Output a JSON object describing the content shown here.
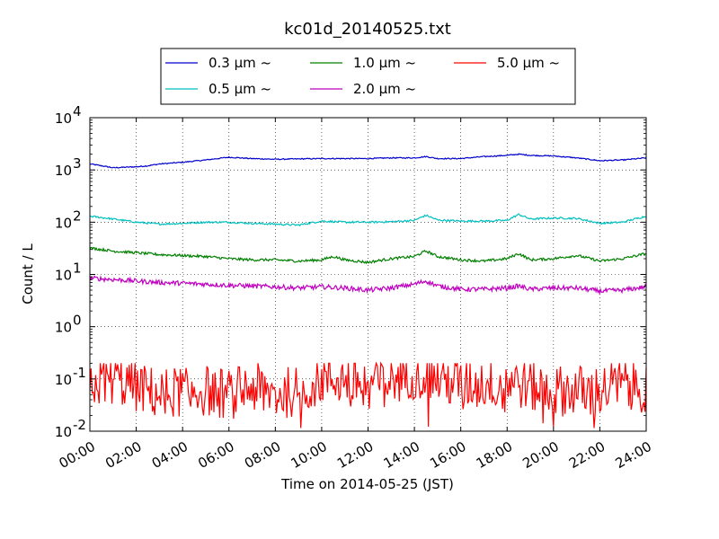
{
  "chart_data": {
    "type": "line",
    "title": "kc01d_20140525.txt",
    "xlabel": "Time on 2014-05-25 (JST)",
    "ylabel": "Count / L",
    "y_scale": "log",
    "ylim": [
      0.01,
      10000
    ],
    "xlim": [
      "00:00",
      "24:00"
    ],
    "x_ticks": [
      "00:00",
      "02:00",
      "04:00",
      "06:00",
      "08:00",
      "10:00",
      "12:00",
      "14:00",
      "16:00",
      "18:00",
      "20:00",
      "22:00",
      "24:00"
    ],
    "y_ticks": [
      {
        "base": "10",
        "exp": "-2"
      },
      {
        "base": "10",
        "exp": "-1"
      },
      {
        "base": "10",
        "exp": "0"
      },
      {
        "base": "10",
        "exp": "1"
      },
      {
        "base": "10",
        "exp": "2"
      },
      {
        "base": "10",
        "exp": "3"
      },
      {
        "base": "10",
        "exp": "4"
      }
    ],
    "grid": true,
    "legend_position": "top",
    "series": [
      {
        "name": "0.3 μm ~",
        "color": "#0000cc",
        "x": [
          "00:00",
          "01:00",
          "02:00",
          "02:30",
          "03:00",
          "04:00",
          "05:00",
          "06:00",
          "07:00",
          "08:00",
          "10:00",
          "12:00",
          "13:00",
          "14:00",
          "14:30",
          "15:00",
          "16:00",
          "17:00",
          "18:00",
          "18:30",
          "19:00",
          "20:00",
          "21:00",
          "22:00",
          "23:00",
          "24:00"
        ],
        "values": [
          1300,
          1100,
          1150,
          1200,
          1300,
          1400,
          1550,
          1750,
          1650,
          1600,
          1650,
          1650,
          1700,
          1700,
          1800,
          1650,
          1650,
          1800,
          1900,
          2000,
          1900,
          1850,
          1700,
          1500,
          1550,
          1700
        ]
      },
      {
        "name": "0.5 μm ~",
        "color": "#00bfbf",
        "x": [
          "00:00",
          "01:00",
          "02:00",
          "03:00",
          "04:00",
          "05:00",
          "06:00",
          "07:00",
          "08:00",
          "09:00",
          "10:00",
          "11:00",
          "12:00",
          "13:00",
          "14:00",
          "14:30",
          "15:00",
          "16:00",
          "17:00",
          "18:00",
          "18:30",
          "19:00",
          "20:00",
          "21:00",
          "22:00",
          "23:00",
          "24:00"
        ],
        "values": [
          130,
          115,
          100,
          92,
          95,
          100,
          100,
          95,
          92,
          88,
          105,
          100,
          100,
          102,
          108,
          135,
          110,
          105,
          105,
          108,
          140,
          115,
          120,
          118,
          95,
          100,
          130
        ]
      },
      {
        "name": "1.0 μm ~",
        "color": "#008000",
        "x": [
          "00:00",
          "01:00",
          "02:00",
          "03:00",
          "04:00",
          "05:00",
          "06:00",
          "07:00",
          "08:00",
          "09:00",
          "10:00",
          "10:30",
          "11:00",
          "12:00",
          "13:00",
          "14:00",
          "14:30",
          "15:00",
          "16:00",
          "17:00",
          "18:00",
          "18:30",
          "19:00",
          "20:00",
          "21:00",
          "22:00",
          "23:00",
          "24:00"
        ],
        "values": [
          32,
          28,
          26,
          24,
          23,
          22,
          20,
          19,
          19,
          18,
          19,
          22,
          19,
          17,
          20,
          22,
          28,
          22,
          19,
          18,
          20,
          25,
          19,
          20,
          23,
          18,
          20,
          25
        ]
      },
      {
        "name": "2.0 μm ~",
        "color": "#bf00bf",
        "x": [
          "00:00",
          "01:00",
          "02:00",
          "03:00",
          "04:00",
          "05:00",
          "06:00",
          "07:00",
          "08:00",
          "09:00",
          "10:00",
          "11:00",
          "12:00",
          "13:00",
          "14:00",
          "14:30",
          "15:00",
          "16:00",
          "17:00",
          "18:00",
          "18:30",
          "19:00",
          "20:00",
          "21:00",
          "22:00",
          "23:00",
          "24:00"
        ],
        "values": [
          8.5,
          8.0,
          7.5,
          7.0,
          6.8,
          6.5,
          6.2,
          6.0,
          5.8,
          5.5,
          5.8,
          5.5,
          5.0,
          5.5,
          6.5,
          7.5,
          6.0,
          5.2,
          5.2,
          5.5,
          6.0,
          5.2,
          5.5,
          5.5,
          4.8,
          5.0,
          5.8
        ]
      },
      {
        "name": "5.0 μm ~",
        "color": "#ff0000",
        "x": [
          "00:00",
          "01:00",
          "02:00",
          "03:00",
          "04:00",
          "05:00",
          "06:00",
          "07:00",
          "08:00",
          "09:00",
          "10:00",
          "11:00",
          "12:00",
          "13:00",
          "14:00",
          "15:00",
          "16:00",
          "17:00",
          "18:00",
          "19:00",
          "20:00",
          "21:00",
          "22:00",
          "23:00",
          "24:00"
        ],
        "values": [
          0.08,
          0.1,
          0.07,
          0.05,
          0.06,
          0.06,
          0.05,
          0.07,
          0.05,
          0.06,
          0.1,
          0.1,
          0.08,
          0.1,
          0.13,
          0.1,
          0.08,
          0.08,
          0.1,
          0.07,
          0.06,
          0.06,
          0.06,
          0.08,
          0.07
        ]
      }
    ]
  }
}
